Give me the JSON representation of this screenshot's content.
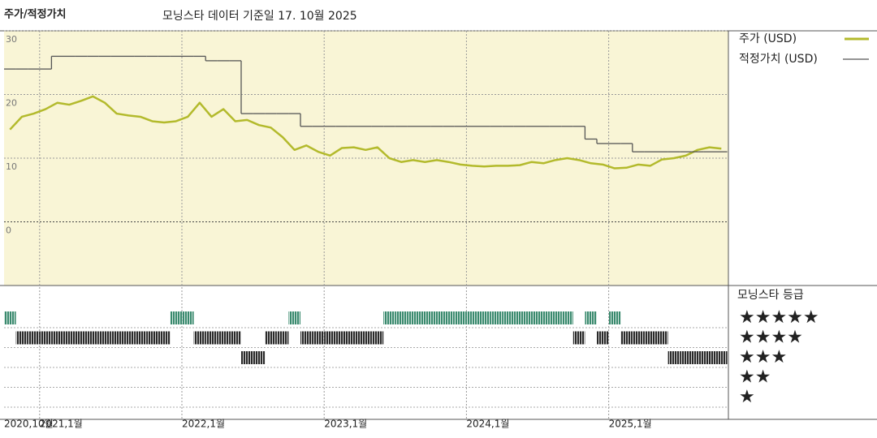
{
  "chart_data": {
    "type": "line",
    "title": "주가/적정가치",
    "subtitle": "모닝스타 데이터 기준일 17. 10월 2025",
    "x": [
      "2020-10",
      "2020-11",
      "2020-12",
      "2021-01",
      "2021-02",
      "2021-03",
      "2021-04",
      "2021-05",
      "2021-06",
      "2021-07",
      "2021-08",
      "2021-09",
      "2021-10",
      "2021-11",
      "2021-12",
      "2022-01",
      "2022-02",
      "2022-03",
      "2022-04",
      "2022-05",
      "2022-06",
      "2022-07",
      "2022-08",
      "2022-09",
      "2022-10",
      "2022-11",
      "2022-12",
      "2023-01",
      "2023-02",
      "2023-03",
      "2023-04",
      "2023-05",
      "2023-06",
      "2023-07",
      "2023-08",
      "2023-09",
      "2023-10",
      "2023-11",
      "2023-12",
      "2024-01",
      "2024-02",
      "2024-03",
      "2024-04",
      "2024-05",
      "2024-06",
      "2024-07",
      "2024-08",
      "2024-09",
      "2024-10",
      "2024-11",
      "2024-12",
      "2025-01",
      "2025-02",
      "2025-03",
      "2025-04",
      "2025-05",
      "2025-06",
      "2025-07",
      "2025-08",
      "2025-09",
      "2025-10"
    ],
    "xticks": [
      {
        "value": "2020-10",
        "label": "2020,10월"
      },
      {
        "value": "2021-01",
        "label": "2021,1월"
      },
      {
        "value": "2022-01",
        "label": "2022,1월"
      },
      {
        "value": "2023-01",
        "label": "2023,1월"
      },
      {
        "value": "2024-01",
        "label": "2024,1월"
      },
      {
        "value": "2025-01",
        "label": "2025,1월"
      }
    ],
    "ylim": [
      -10,
      30
    ],
    "yticks": [
      0,
      10,
      20,
      30
    ],
    "grid": true,
    "series": [
      {
        "name": "주가 (USD)",
        "color": "#b3ba2c",
        "values": [
          14.5,
          16.5,
          17,
          17.7,
          18.7,
          18.4,
          19,
          19.7,
          18.7,
          17,
          16.7,
          16.5,
          15.8,
          15.6,
          15.8,
          16.5,
          18.7,
          16.5,
          17.7,
          15.8,
          16,
          15.2,
          14.8,
          13.3,
          11.3,
          12,
          11,
          10.4,
          11.6,
          11.7,
          11.3,
          11.7,
          10,
          9.4,
          9.7,
          9.4,
          9.7,
          9.4,
          9,
          8.8,
          8.7,
          8.8,
          8.8,
          8.9,
          9.4,
          9.2,
          9.7,
          10,
          9.7,
          9.2,
          9,
          8.4,
          8.5,
          9,
          8.8,
          9.8,
          10,
          10.4,
          11.3,
          11.7,
          11.5
        ]
      },
      {
        "name": "적정가치 (USD)",
        "color": "#555555",
        "step": true,
        "values": [
          24,
          24,
          24,
          24,
          26,
          26,
          26,
          26,
          26,
          26,
          26,
          26,
          26,
          26,
          26,
          26,
          26,
          25.3,
          25.3,
          25.3,
          17,
          17,
          17,
          17,
          17,
          15,
          15,
          15,
          15,
          15,
          15,
          15,
          15,
          15,
          15,
          15,
          15,
          15,
          15,
          15,
          15,
          15,
          15,
          15,
          15,
          15,
          15,
          15,
          15,
          13,
          12.3,
          12.3,
          12.3,
          11,
          11,
          11,
          11,
          11,
          11,
          11,
          11
        ]
      }
    ],
    "ratings": {
      "title": "모닝스타 등급",
      "labels": [
        "★★★★★",
        "★★★★",
        "★★★",
        "★★",
        "★"
      ],
      "colors": {
        "5": "#3a8a6e",
        "4": "#2a2a2a",
        "3": "#2a2a2a",
        "2": "#2a2a2a",
        "1": "#2a2a2a"
      },
      "values": [
        5,
        4,
        4,
        4,
        4,
        4,
        4,
        4,
        4,
        4,
        4,
        4,
        4,
        4,
        5,
        5,
        4,
        4,
        4,
        4,
        3,
        3,
        4,
        4,
        5,
        4,
        4,
        4,
        4,
        4,
        4,
        4,
        5,
        5,
        5,
        5,
        5,
        5,
        5,
        5,
        5,
        5,
        5,
        5,
        5,
        5,
        5,
        5,
        4,
        5,
        4,
        5,
        4,
        4,
        4,
        4,
        3,
        3,
        3,
        3,
        3
      ]
    }
  }
}
